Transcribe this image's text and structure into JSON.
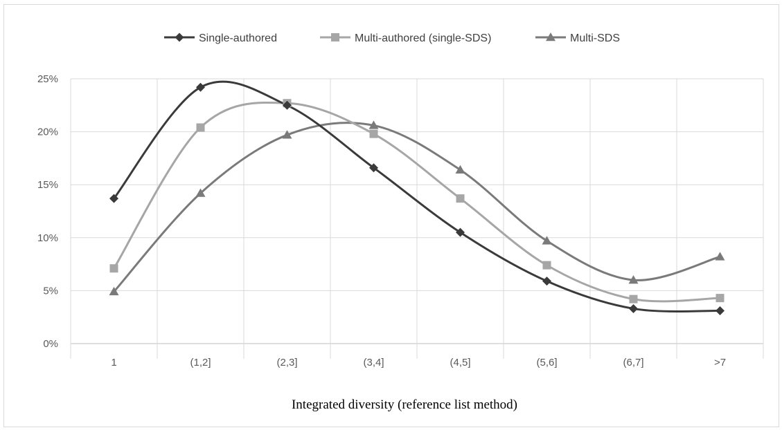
{
  "chart_data": {
    "type": "line",
    "title": "",
    "xlabel": "Integrated diversity (reference list method)",
    "ylabel": "",
    "categories": [
      "1",
      "(1,2]",
      "(2,3]",
      "(3,4]",
      "(4,5]",
      "(5,6]",
      "(6,7]",
      ">7"
    ],
    "y_ticks": [
      "0%",
      "5%",
      "10%",
      "15%",
      "20%",
      "25%"
    ],
    "ylim": [
      0,
      25
    ],
    "grid": true,
    "smooth": true,
    "legend_position": "top",
    "series": [
      {
        "name": "Single-authored",
        "marker": "diamond",
        "color": "#3a3a3a",
        "values": [
          13.7,
          24.2,
          22.5,
          16.6,
          10.5,
          5.9,
          3.3,
          3.1
        ]
      },
      {
        "name": "Multi-authored (single-SDS)",
        "marker": "square",
        "color": "#a6a6a6",
        "values": [
          7.1,
          20.4,
          22.7,
          19.8,
          13.7,
          7.4,
          4.2,
          4.3
        ]
      },
      {
        "name": "Multi-SDS",
        "marker": "triangle",
        "color": "#7a7a7a",
        "values": [
          4.9,
          14.2,
          19.7,
          20.6,
          16.4,
          9.7,
          6.0,
          8.2
        ]
      }
    ]
  }
}
